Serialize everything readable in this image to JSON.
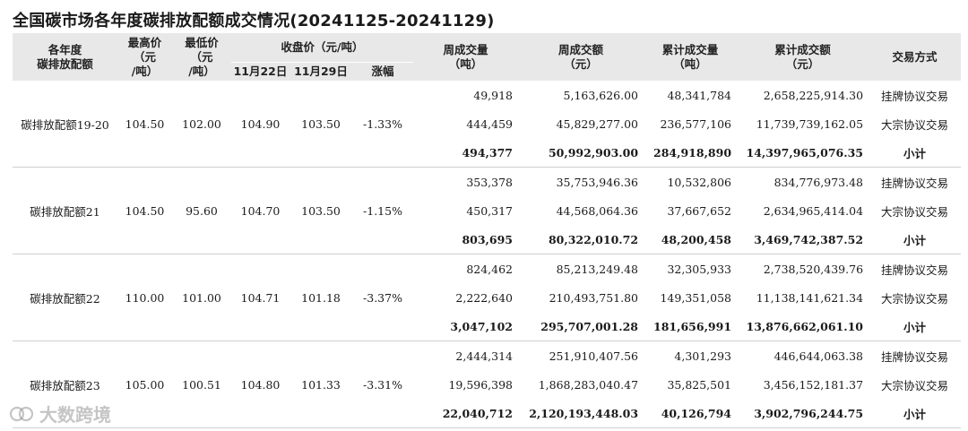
{
  "title": "全国碳市场各年度碳排放配额成交情况(20241125-20241129)",
  "headers": {
    "year_quota": "各年度\n碳排放配额",
    "high_price": "最高价\n（元\n/吨）",
    "low_price": "最低价\n（元\n/吨）",
    "close_price": "收盘价（元/吨）",
    "nov22": "11月22日",
    "nov29": "11月29日",
    "change": "涨幅",
    "weekly_volume": "周成交量\n（吨）",
    "weekly_amount": "周成交额\n（元）",
    "cum_volume": "累计成交量\n（吨）",
    "cum_amount": "累计成交额\n（元）",
    "method": "交易方式"
  },
  "groups": [
    {
      "name": "碳排放配额19-20",
      "high": "104.50",
      "low": "102.00",
      "close_nov22": "104.90",
      "close_nov29": "103.50",
      "change": "-1.33%",
      "rows": [
        {
          "weekly_volume": "49,918",
          "weekly_amount": "5,163,626.00",
          "cum_volume": "48,341,784",
          "cum_amount": "2,658,225,914.30",
          "method": "挂牌协议交易"
        },
        {
          "weekly_volume": "444,459",
          "weekly_amount": "45,829,277.00",
          "cum_volume": "236,577,106",
          "cum_amount": "11,739,739,162.05",
          "method": "大宗协议交易"
        },
        {
          "weekly_volume": "494,377",
          "weekly_amount": "50,992,903.00",
          "cum_volume": "284,918,890",
          "cum_amount": "14,397,965,076.35",
          "method": "小计"
        }
      ]
    },
    {
      "name": "碳排放配额21",
      "high": "104.50",
      "low": "95.60",
      "close_nov22": "104.70",
      "close_nov29": "103.50",
      "change": "-1.15%",
      "rows": [
        {
          "weekly_volume": "353,378",
          "weekly_amount": "35,753,946.36",
          "cum_volume": "10,532,806",
          "cum_amount": "834,776,973.48",
          "method": "挂牌协议交易"
        },
        {
          "weekly_volume": "450,317",
          "weekly_amount": "44,568,064.36",
          "cum_volume": "37,667,652",
          "cum_amount": "2,634,965,414.04",
          "method": "大宗协议交易"
        },
        {
          "weekly_volume": "803,695",
          "weekly_amount": "80,322,010.72",
          "cum_volume": "48,200,458",
          "cum_amount": "3,469,742,387.52",
          "method": "小计"
        }
      ]
    },
    {
      "name": "碳排放配额22",
      "high": "110.00",
      "low": "101.00",
      "close_nov22": "104.71",
      "close_nov29": "101.18",
      "change": "-3.37%",
      "rows": [
        {
          "weekly_volume": "824,462",
          "weekly_amount": "85,213,249.48",
          "cum_volume": "32,305,933",
          "cum_amount": "2,738,520,439.76",
          "method": "挂牌协议交易"
        },
        {
          "weekly_volume": "2,222,640",
          "weekly_amount": "210,493,751.80",
          "cum_volume": "149,351,058",
          "cum_amount": "11,138,141,621.34",
          "method": "大宗协议交易"
        },
        {
          "weekly_volume": "3,047,102",
          "weekly_amount": "295,707,001.28",
          "cum_volume": "181,656,991",
          "cum_amount": "13,876,662,061.10",
          "method": "小计"
        }
      ]
    },
    {
      "name": "碳排放配额23",
      "high": "105.00",
      "low": "100.51",
      "close_nov22": "104.80",
      "close_nov29": "101.33",
      "change": "-3.31%",
      "rows": [
        {
          "weekly_volume": "2,444,314",
          "weekly_amount": "251,910,407.56",
          "cum_volume": "4,301,293",
          "cum_amount": "446,644,063.38",
          "method": "挂牌协议交易"
        },
        {
          "weekly_volume": "19,596,398",
          "weekly_amount": "1,868,283,040.47",
          "cum_volume": "35,825,501",
          "cum_amount": "3,456,152,181.37",
          "method": "大宗协议交易"
        },
        {
          "weekly_volume": "22,040,712",
          "weekly_amount": "2,120,193,448.03",
          "cum_volume": "40,126,794",
          "cum_amount": "3,902,796,244.75",
          "method": "小计"
        }
      ]
    }
  ],
  "watermark": "大数跨境"
}
